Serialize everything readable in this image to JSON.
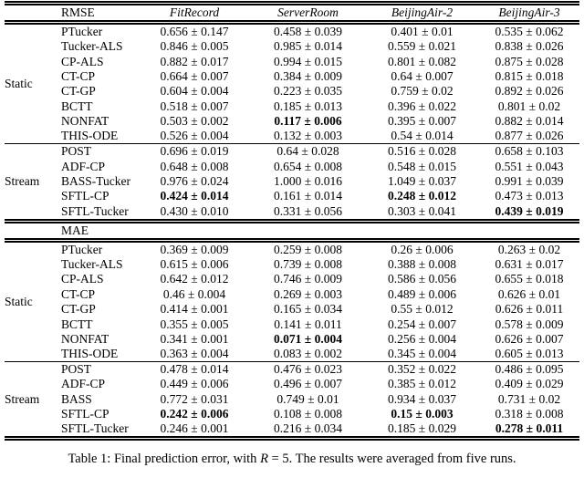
{
  "caption": {
    "part1": "Table 1: Final prediction error, with ",
    "math_var": "R",
    "part2": " = 5. The results were averaged from five runs."
  },
  "tables": [
    {
      "metric": "RMSE",
      "columns": [
        "FitRecord",
        "ServerRoom",
        "BeijingAir-2",
        "BeijingAir-3"
      ],
      "groups": [
        {
          "label": "Static",
          "rows": [
            {
              "method": "PTucker",
              "values": [
                "0.656 ± 0.147",
                "0.458 ± 0.039",
                "0.401 ± 0.01",
                "0.535 ± 0.062"
              ]
            },
            {
              "method": "Tucker-ALS",
              "values": [
                "0.846 ± 0.005",
                "0.985 ± 0.014",
                "0.559 ± 0.021",
                "0.838 ± 0.026"
              ]
            },
            {
              "method": "CP-ALS",
              "values": [
                "0.882 ± 0.017",
                "0.994 ± 0.015",
                "0.801 ± 0.082",
                "0.875 ± 0.028"
              ]
            },
            {
              "method": "CT-CP",
              "values": [
                "0.664 ± 0.007",
                "0.384 ± 0.009",
                "0.64 ± 0.007",
                "0.815 ± 0.018"
              ]
            },
            {
              "method": "CT-GP",
              "values": [
                "0.604 ± 0.004",
                "0.223 ± 0.035",
                "0.759 ± 0.02",
                "0.892 ± 0.026"
              ]
            },
            {
              "method": "BCTT",
              "values": [
                "0.518 ± 0.007",
                "0.185 ± 0.013",
                "0.396 ± 0.022",
                "0.801 ± 0.02"
              ]
            },
            {
              "method": "NONFAT",
              "values": [
                "0.503 ± 0.002",
                {
                  "v": "0.117 ± 0.006",
                  "b": true
                },
                "0.395 ± 0.007",
                "0.882 ± 0.014"
              ]
            },
            {
              "method": "THIS-ODE",
              "values": [
                "0.526 ± 0.004",
                "0.132 ± 0.003",
                "0.54 ± 0.014",
                "0.877 ± 0.026"
              ]
            }
          ]
        },
        {
          "label": "Stream",
          "rows": [
            {
              "method": "POST",
              "values": [
                "0.696 ± 0.019",
                "0.64 ± 0.028",
                "0.516 ± 0.028",
                "0.658 ± 0.103"
              ]
            },
            {
              "method": "ADF-CP",
              "values": [
                "0.648 ± 0.008",
                "0.654 ± 0.008",
                "0.548 ± 0.015",
                "0.551 ± 0.043"
              ]
            },
            {
              "method": "BASS-Tucker",
              "values": [
                "0.976 ± 0.024",
                "1.000 ± 0.016",
                "1.049 ± 0.037",
                "0.991 ± 0.039"
              ]
            },
            {
              "method": "SFTL-CP",
              "values": [
                {
                  "v": "0.424 ± 0.014",
                  "b": true
                },
                "0.161 ± 0.014",
                {
                  "v": "0.248 ± 0.012",
                  "b": true
                },
                "0.473 ± 0.013"
              ]
            },
            {
              "method": "SFTL-Tucker",
              "values": [
                "0.430 ± 0.010",
                "0.331 ± 0.056",
                "0.303 ± 0.041",
                {
                  "v": "0.439 ± 0.019",
                  "b": true
                }
              ]
            }
          ]
        }
      ]
    },
    {
      "metric": "MAE",
      "columns": [
        "",
        "",
        "",
        ""
      ],
      "groups": [
        {
          "label": "Static",
          "rows": [
            {
              "method": "PTucker",
              "values": [
                "0.369 ± 0.009",
                "0.259 ± 0.008",
                "0.26 ± 0.006",
                "0.263 ± 0.02"
              ]
            },
            {
              "method": "Tucker-ALS",
              "values": [
                "0.615 ± 0.006",
                "0.739 ± 0.008",
                "0.388 ± 0.008",
                "0.631 ± 0.017"
              ]
            },
            {
              "method": "CP-ALS",
              "values": [
                "0.642 ± 0.012",
                "0.746 ± 0.009",
                "0.586 ± 0.056",
                "0.655 ± 0.018"
              ]
            },
            {
              "method": "CT-CP",
              "values": [
                "0.46 ± 0.004",
                "0.269 ± 0.003",
                "0.489 ± 0.006",
                "0.626 ± 0.01"
              ]
            },
            {
              "method": "CT-GP",
              "values": [
                "0.414 ± 0.001",
                "0.165 ± 0.034",
                "0.55 ± 0.012",
                "0.626 ± 0.011"
              ]
            },
            {
              "method": "BCTT",
              "values": [
                "0.355 ± 0.005",
                "0.141 ± 0.011",
                "0.254 ± 0.007",
                "0.578 ± 0.009"
              ]
            },
            {
              "method": "NONFAT",
              "values": [
                "0.341 ± 0.001",
                {
                  "v": "0.071 ± 0.004",
                  "b": true
                },
                "0.256 ± 0.004",
                "0.626 ± 0.007"
              ]
            },
            {
              "method": "THIS-ODE",
              "values": [
                "0.363 ± 0.004",
                "0.083 ± 0.002",
                "0.345 ± 0.004",
                "0.605 ± 0.013"
              ]
            }
          ]
        },
        {
          "label": "Stream",
          "rows": [
            {
              "method": "POST",
              "values": [
                "0.478 ± 0.014",
                "0.476 ± 0.023",
                "0.352 ± 0.022",
                "0.486 ± 0.095"
              ]
            },
            {
              "method": "ADF-CP",
              "values": [
                "0.449 ± 0.006",
                "0.496 ± 0.007",
                "0.385 ± 0.012",
                "0.409 ± 0.029"
              ]
            },
            {
              "method": "BASS",
              "values": [
                "0.772 ± 0.031",
                "0.749 ± 0.01",
                "0.934 ± 0.037",
                "0.731 ± 0.02"
              ]
            },
            {
              "method": "SFTL-CP",
              "values": [
                {
                  "v": "0.242 ± 0.006",
                  "b": true
                },
                "0.108 ± 0.008",
                {
                  "v": "0.15 ± 0.003",
                  "b": true
                },
                "0.318 ± 0.008"
              ]
            },
            {
              "method": "SFTL-Tucker",
              "values": [
                "0.246 ± 0.001",
                "0.216 ± 0.034",
                "0.185 ± 0.029",
                {
                  "v": "0.278 ± 0.011",
                  "b": true
                }
              ]
            }
          ]
        }
      ]
    }
  ]
}
